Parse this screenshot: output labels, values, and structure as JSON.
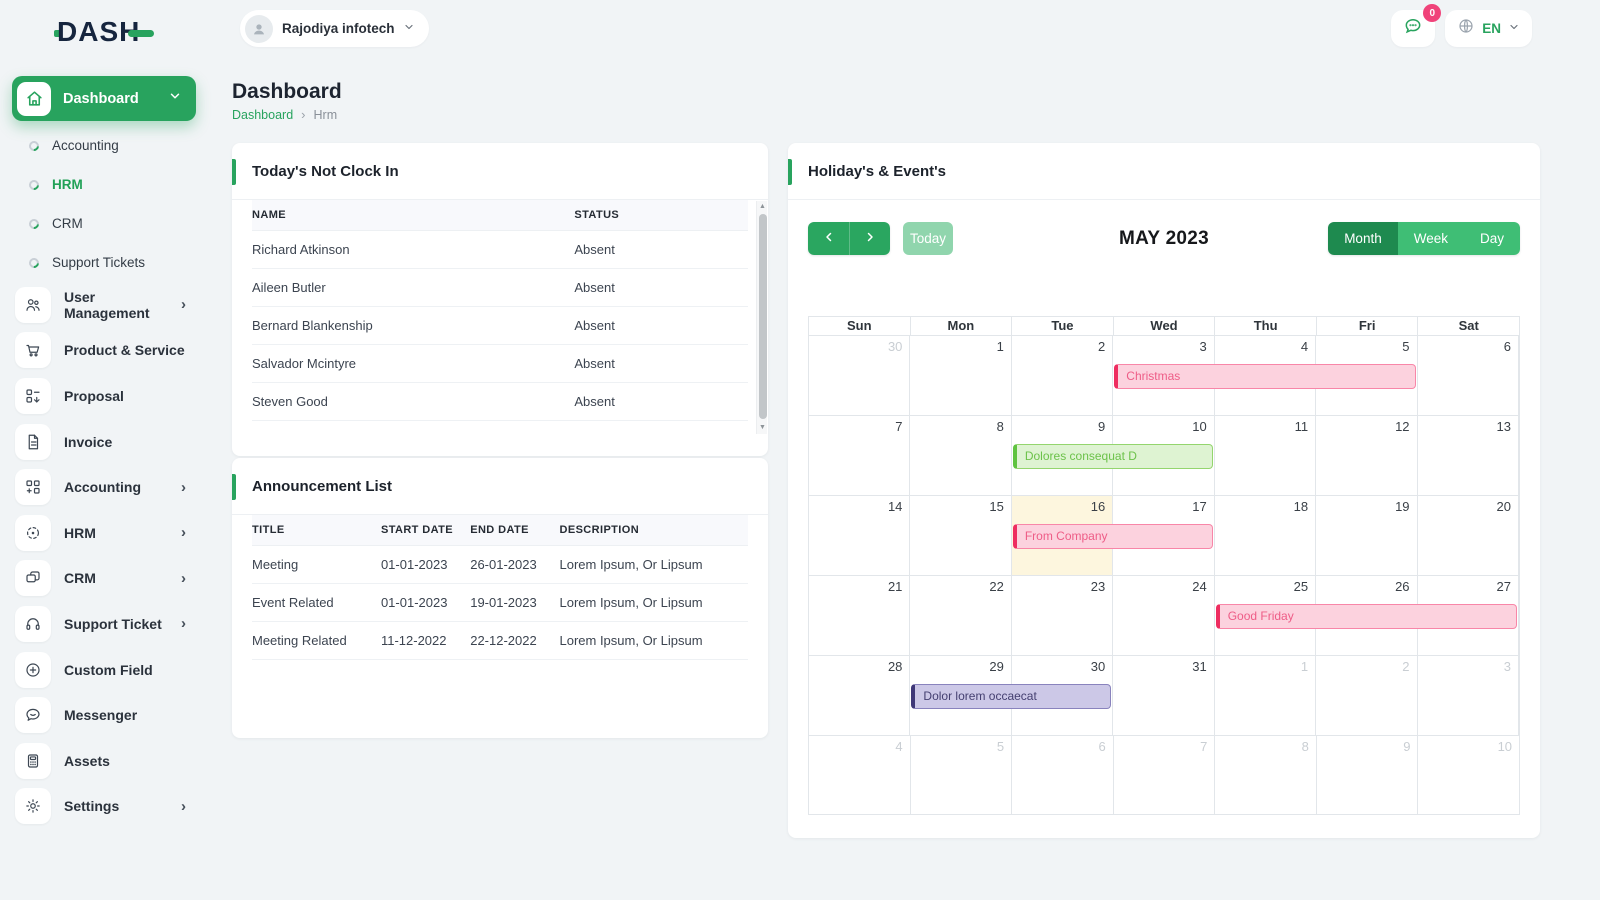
{
  "brand": {
    "logo_text": "DASH"
  },
  "header": {
    "company": "Rajodiya infotech",
    "messages_badge": "0",
    "language": "EN"
  },
  "page": {
    "title": "Dashboard",
    "breadcrumb_root": "Dashboard",
    "breadcrumb_current": "Hrm"
  },
  "sidebar": {
    "active_item": "Dashboard",
    "sub_items": [
      {
        "label": "Accounting",
        "active": false
      },
      {
        "label": "HRM",
        "active": true
      },
      {
        "label": "CRM",
        "active": false
      },
      {
        "label": "Support Tickets",
        "active": false
      }
    ],
    "items": [
      {
        "label": "User Management",
        "icon": "users",
        "chevron": true
      },
      {
        "label": "Product & Service",
        "icon": "cart",
        "chevron": false
      },
      {
        "label": "Proposal",
        "icon": "proposal",
        "chevron": false
      },
      {
        "label": "Invoice",
        "icon": "invoice",
        "chevron": false
      },
      {
        "label": "Accounting",
        "icon": "accounting",
        "chevron": true
      },
      {
        "label": "HRM",
        "icon": "hrm",
        "chevron": true
      },
      {
        "label": "CRM",
        "icon": "crm",
        "chevron": true
      },
      {
        "label": "Support Ticket",
        "icon": "headset",
        "chevron": true
      },
      {
        "label": "Custom Field",
        "icon": "plus-circle",
        "chevron": false
      },
      {
        "label": "Messenger",
        "icon": "chat",
        "chevron": false
      },
      {
        "label": "Assets",
        "icon": "calculator",
        "chevron": false
      },
      {
        "label": "Settings",
        "icon": "gear",
        "chevron": true
      }
    ]
  },
  "clockin": {
    "title": "Today's Not Clock In",
    "columns": [
      "NAME",
      "STATUS"
    ],
    "rows": [
      [
        "Richard Atkinson",
        "Absent"
      ],
      [
        "Aileen Butler",
        "Absent"
      ],
      [
        "Bernard Blankenship",
        "Absent"
      ],
      [
        "Salvador Mcintyre",
        "Absent"
      ],
      [
        "Steven Good",
        "Absent"
      ]
    ]
  },
  "announcements": {
    "title": "Announcement List",
    "columns": [
      "TITLE",
      "START DATE",
      "END DATE",
      "DESCRIPTION"
    ],
    "rows": [
      [
        "Meeting",
        "01-01-2023",
        "26-01-2023",
        "Lorem Ipsum, Or Lipsum"
      ],
      [
        "Event Related",
        "01-01-2023",
        "19-01-2023",
        "Lorem Ipsum, Or Lipsum"
      ],
      [
        "Meeting Related",
        "11-12-2022",
        "22-12-2022",
        "Lorem Ipsum, Or Lipsum"
      ]
    ]
  },
  "calendar": {
    "title": "Holiday's & Event's",
    "month_label": "MAY 2023",
    "today_button": "Today",
    "views": [
      "Month",
      "Week",
      "Day"
    ],
    "active_view": "Month",
    "weekdays": [
      "Sun",
      "Mon",
      "Tue",
      "Wed",
      "Thu",
      "Fri",
      "Sat"
    ],
    "weeks": [
      [
        {
          "n": 30,
          "muted": true
        },
        {
          "n": 1
        },
        {
          "n": 2
        },
        {
          "n": 3
        },
        {
          "n": 4
        },
        {
          "n": 5
        },
        {
          "n": 6
        }
      ],
      [
        {
          "n": 7
        },
        {
          "n": 8
        },
        {
          "n": 9
        },
        {
          "n": 10
        },
        {
          "n": 11
        },
        {
          "n": 12
        },
        {
          "n": 13
        }
      ],
      [
        {
          "n": 14
        },
        {
          "n": 15
        },
        {
          "n": 16,
          "today": true
        },
        {
          "n": 17
        },
        {
          "n": 18
        },
        {
          "n": 19
        },
        {
          "n": 20
        }
      ],
      [
        {
          "n": 21
        },
        {
          "n": 22
        },
        {
          "n": 23
        },
        {
          "n": 24
        },
        {
          "n": 25
        },
        {
          "n": 26
        },
        {
          "n": 27
        }
      ],
      [
        {
          "n": 28
        },
        {
          "n": 29
        },
        {
          "n": 30
        },
        {
          "n": 31
        },
        {
          "n": 1,
          "muted": true
        },
        {
          "n": 2,
          "muted": true
        },
        {
          "n": 3,
          "muted": true
        }
      ],
      [
        {
          "n": 4,
          "muted": true
        },
        {
          "n": 5,
          "muted": true
        },
        {
          "n": 6,
          "muted": true
        },
        {
          "n": 7,
          "muted": true
        },
        {
          "n": 8,
          "muted": true
        },
        {
          "n": 9,
          "muted": true
        },
        {
          "n": 10,
          "muted": true
        }
      ]
    ],
    "events": [
      {
        "title": "Christmas",
        "week": 0,
        "col": 3,
        "span": 3,
        "color": "pink"
      },
      {
        "title": "Dolores consequat D",
        "week": 1,
        "col": 2,
        "span": 2,
        "color": "green"
      },
      {
        "title": "From Company",
        "week": 2,
        "col": 2,
        "span": 2,
        "color": "pink"
      },
      {
        "title": "Good Friday",
        "week": 3,
        "col": 4,
        "span": 3,
        "color": "pink"
      },
      {
        "title": "Dolor lorem occaecat",
        "week": 4,
        "col": 1,
        "span": 2,
        "color": "purple"
      }
    ]
  },
  "colors": {
    "primary_green": "#28a35e",
    "view_active_green": "#1e8a4f",
    "view_green": "#3fbe75",
    "today_disabled_green": "#90d5ad",
    "badge_pink": "#f0437a",
    "event_pink_bg": "#fcd2de",
    "event_pink_accent": "#ee2d60",
    "event_green_bg": "#def3d2",
    "event_green_accent": "#5fc340",
    "event_purple_bg": "#ccc8e7",
    "event_purple_accent": "#3f3878",
    "today_cell_bg": "#fdf6de",
    "page_bg": "#f1f4f6"
  }
}
